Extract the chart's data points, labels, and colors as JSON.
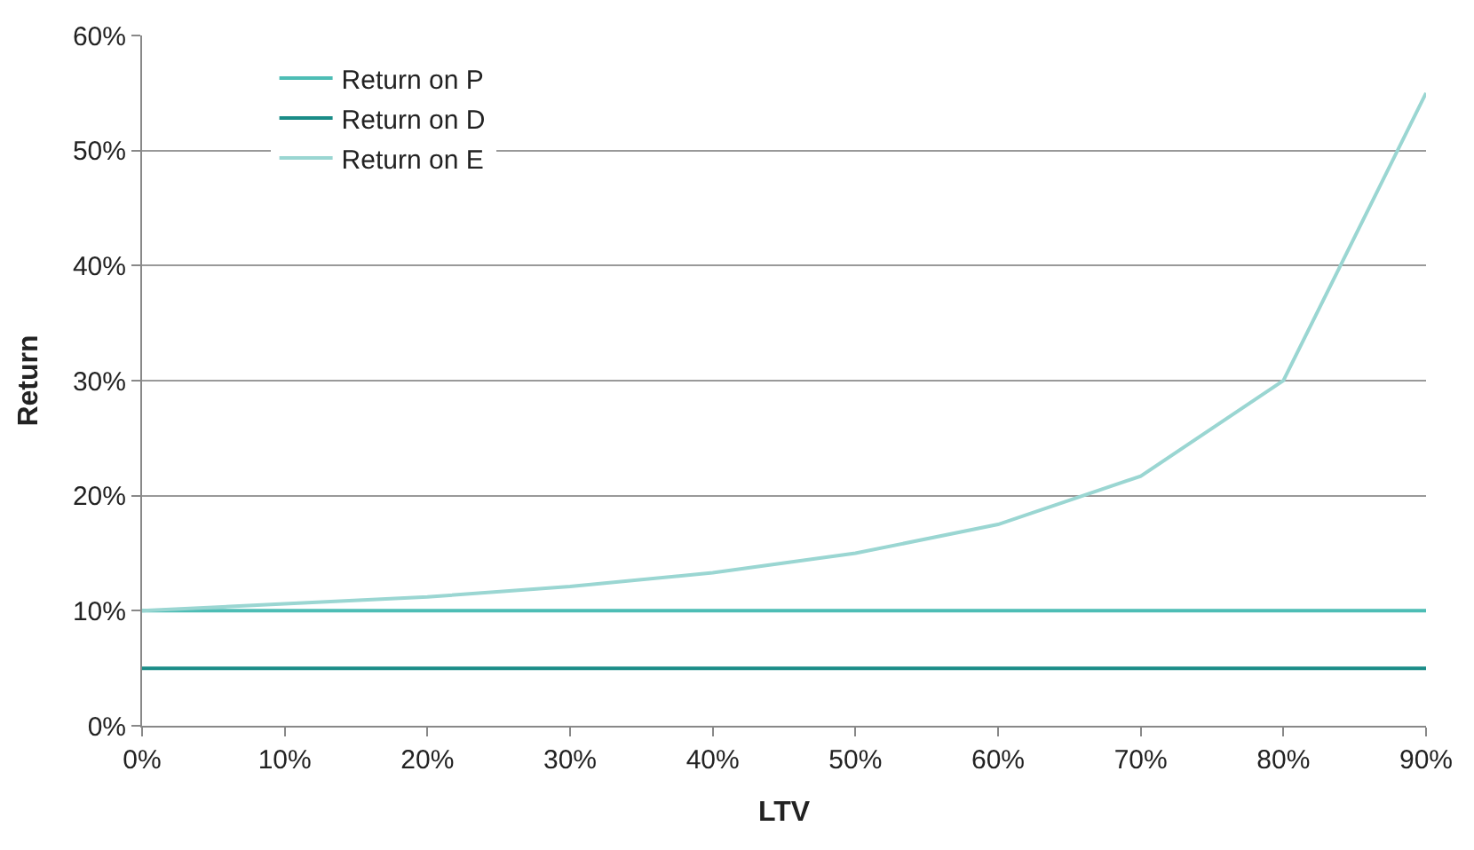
{
  "chart_data": {
    "type": "line",
    "xlabel": "LTV",
    "ylabel": "Return",
    "x": [
      0,
      10,
      20,
      30,
      40,
      50,
      60,
      70,
      80,
      90
    ],
    "series": [
      {
        "name": "Return on P",
        "color": "#4dbdb5",
        "values": [
          10,
          10,
          10,
          10,
          10,
          10,
          10,
          10,
          10,
          10
        ]
      },
      {
        "name": "Return on D",
        "color": "#1a8c87",
        "values": [
          5,
          5,
          5,
          5,
          5,
          5,
          5,
          5,
          5,
          5
        ]
      },
      {
        "name": "Return on E",
        "color": "#9ad6d2",
        "values": [
          10,
          10.6,
          11.2,
          12.1,
          13.3,
          15,
          17.5,
          21.7,
          30,
          55
        ]
      }
    ],
    "xlim": [
      0,
      90
    ],
    "xticks": [
      {
        "value": 0,
        "label": "0%"
      },
      {
        "value": 10,
        "label": "10%"
      },
      {
        "value": 20,
        "label": "20%"
      },
      {
        "value": 30,
        "label": "30%"
      },
      {
        "value": 40,
        "label": "40%"
      },
      {
        "value": 50,
        "label": "50%"
      },
      {
        "value": 60,
        "label": "60%"
      },
      {
        "value": 70,
        "label": "70%"
      },
      {
        "value": 80,
        "label": "80%"
      },
      {
        "value": 90,
        "label": "90%"
      }
    ],
    "ylim": [
      0,
      60
    ],
    "yticks": [
      {
        "value": 0,
        "label": "0%"
      },
      {
        "value": 10,
        "label": "10%"
      },
      {
        "value": 20,
        "label": "20%"
      },
      {
        "value": 30,
        "label": "30%"
      },
      {
        "value": 40,
        "label": "40%"
      },
      {
        "value": 50,
        "label": "50%"
      },
      {
        "value": 60,
        "label": "60%"
      }
    ],
    "grid": "y",
    "legend": "top left",
    "marker": "none",
    "line_style": "solid"
  }
}
